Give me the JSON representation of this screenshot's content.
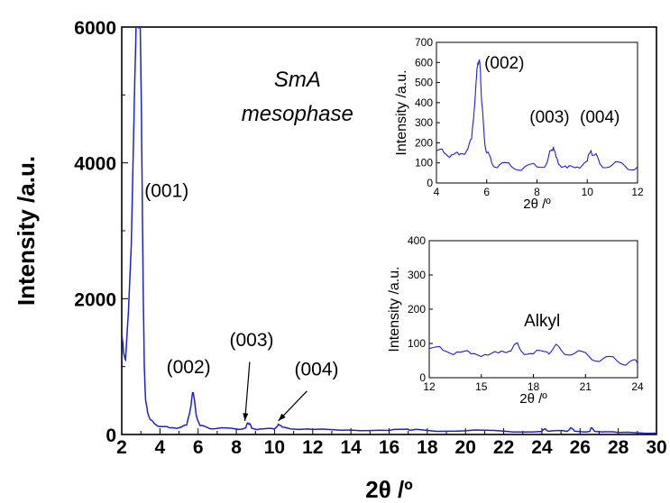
{
  "chart_data": [
    {
      "id": "main",
      "type": "line",
      "xlabel": "2θ /º",
      "ylabel": "Intensity /a.u.",
      "xlim": [
        2,
        30
      ],
      "ylim": [
        0,
        6000
      ],
      "xticks": [
        2,
        4,
        6,
        8,
        10,
        12,
        14,
        16,
        18,
        20,
        22,
        24,
        26,
        28,
        30
      ],
      "yticks": [
        0,
        2000,
        4000,
        6000
      ],
      "grid": false,
      "line_color": "#1f1fd6",
      "text_label": "SmA mesophase",
      "text_label_lines": [
        "SmA",
        "mesophase"
      ],
      "series": [
        {
          "x": [
            2.0,
            2.1,
            2.2,
            2.35,
            2.5,
            2.65,
            2.75,
            2.82,
            2.88,
            2.92,
            2.97,
            3.02,
            3.07,
            3.12,
            3.18,
            3.25,
            3.35,
            3.5,
            3.7,
            4.0,
            4.5,
            5.0,
            5.4,
            5.6,
            5.7,
            5.75,
            5.8,
            5.9,
            6.1,
            6.5,
            7.0,
            8.0,
            8.5,
            8.6,
            8.7,
            8.8,
            9.2,
            10.0,
            10.2,
            10.4,
            11.0,
            12.0,
            14.0,
            16.0,
            17.0,
            17.2,
            18.0,
            20.0,
            22.0,
            24.0,
            24.2,
            24.4,
            25.3,
            25.5,
            25.7,
            26.5,
            26.6,
            26.8,
            28.0,
            30.0
          ],
          "y": [
            1500,
            1200,
            1100,
            1800,
            2800,
            4800,
            6000,
            6000,
            6000,
            6000,
            6000,
            5000,
            3600,
            2200,
            1000,
            500,
            330,
            220,
            160,
            120,
            100,
            100,
            140,
            380,
            600,
            620,
            520,
            280,
            130,
            100,
            90,
            80,
            100,
            170,
            160,
            95,
            80,
            80,
            150,
            110,
            80,
            75,
            65,
            60,
            80,
            65,
            60,
            55,
            50,
            45,
            80,
            50,
            45,
            100,
            50,
            45,
            100,
            45,
            30,
            20
          ]
        }
      ],
      "annotations": [
        {
          "text": "(001)",
          "x": 4.35,
          "y": 3500
        },
        {
          "text": "(002)",
          "x": 5.5,
          "y": 900
        },
        {
          "text": "(003)",
          "x": 8.8,
          "y": 1300
        },
        {
          "text": "(004)",
          "x": 12.2,
          "y": 870
        }
      ],
      "arrows": [
        {
          "from": [
            8.7,
            1070
          ],
          "to": [
            8.45,
            200
          ]
        },
        {
          "from": [
            11.7,
            640
          ],
          "to": [
            10.2,
            200
          ]
        }
      ]
    },
    {
      "id": "inset-top",
      "type": "line",
      "xlabel": "2θ /º",
      "ylabel": "Intensity /a.u.",
      "xlim": [
        4,
        12
      ],
      "ylim": [
        0,
        700
      ],
      "xticks": [
        4,
        6,
        8,
        10,
        12
      ],
      "yticks": [
        0,
        100,
        200,
        300,
        400,
        500,
        600,
        700
      ],
      "line_color": "#1f1fd6",
      "series": [
        {
          "x": [
            4.0,
            4.3,
            4.6,
            4.9,
            5.2,
            5.4,
            5.5,
            5.6,
            5.65,
            5.7,
            5.75,
            5.8,
            5.9,
            6.0,
            6.2,
            6.5,
            7.0,
            7.5,
            8.0,
            8.4,
            8.55,
            8.65,
            8.75,
            8.9,
            9.2,
            9.6,
            10.0,
            10.15,
            10.3,
            10.5,
            11.0,
            11.5,
            12.0
          ],
          "y": [
            160,
            150,
            140,
            140,
            160,
            220,
            360,
            540,
            600,
            610,
            560,
            400,
            230,
            150,
            100,
            90,
            80,
            80,
            80,
            100,
            160,
            180,
            130,
            90,
            75,
            80,
            110,
            160,
            140,
            95,
            90,
            85,
            80
          ]
        }
      ],
      "annotations": [
        {
          "text": "(002)",
          "x": 6.7,
          "y": 570
        },
        {
          "text": "(003)",
          "x": 8.5,
          "y": 300
        },
        {
          "text": "(004)",
          "x": 10.5,
          "y": 300
        }
      ]
    },
    {
      "id": "inset-bottom",
      "type": "line",
      "xlabel": "2θ /º",
      "ylabel": "Intensity /a.u.",
      "xlim": [
        12,
        24
      ],
      "ylim": [
        0,
        400
      ],
      "xticks": [
        12,
        15,
        18,
        21,
        24
      ],
      "yticks": [
        0,
        100,
        200,
        300,
        400
      ],
      "line_color": "#1f1fd6",
      "series": [
        {
          "x": [
            12.0,
            12.8,
            13.6,
            14.4,
            15.2,
            16.0,
            16.6,
            17.0,
            17.3,
            18.0,
            18.8,
            19.2,
            19.6,
            20.4,
            21.2,
            22.0,
            22.8,
            23.5,
            24.0
          ],
          "y": [
            85,
            80,
            75,
            70,
            68,
            72,
            78,
            100,
            78,
            70,
            75,
            90,
            80,
            72,
            62,
            55,
            50,
            45,
            42
          ]
        }
      ],
      "annotations": [
        {
          "text": "Alkyl",
          "x": 18.5,
          "y": 150
        }
      ]
    }
  ]
}
